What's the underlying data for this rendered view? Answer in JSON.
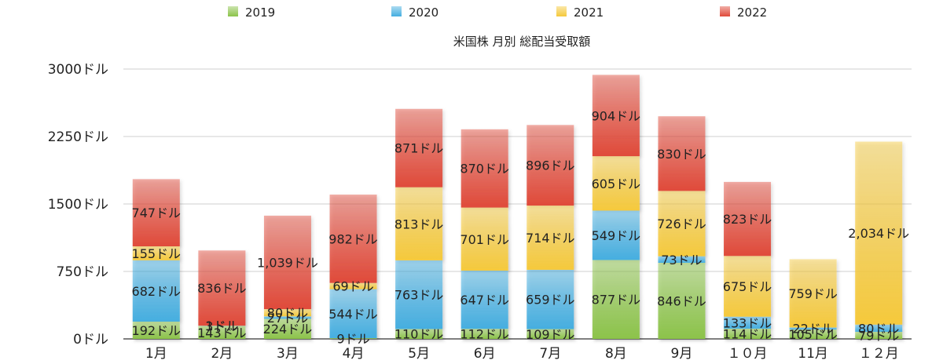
{
  "chart_data": {
    "type": "bar",
    "stacked": true,
    "title": "米国株 月別 総配当受取額",
    "xlabel": "",
    "ylabel": "",
    "ylim": [
      0,
      3000
    ],
    "yticks": [
      0,
      750,
      1500,
      2250,
      3000
    ],
    "ytick_labels": [
      "0ドル",
      "750ドル",
      "1500ドル",
      "2250ドル",
      "3000ドル"
    ],
    "grid": true,
    "legend_position": "top",
    "categories": [
      "1月",
      "2月",
      "3月",
      "4月",
      "5月",
      "6月",
      "7月",
      "8月",
      "9月",
      "１０月",
      "11月",
      "１２月"
    ],
    "series": [
      {
        "name": "2019",
        "color": "#8cc34a",
        "values": [
          192,
          143,
          224,
          9,
          110,
          112,
          109,
          877,
          846,
          114,
          105,
          79
        ],
        "labels": [
          "192ドル",
          "143ドル",
          "224ドル",
          "9ドル",
          "110ドル",
          "112ドル",
          "109ドル",
          "877ドル",
          "846ドル",
          "114ドル",
          "105ドル",
          "79ドル"
        ]
      },
      {
        "name": "2020",
        "color": "#45aee0",
        "values": [
          682,
          3,
          27,
          544,
          763,
          647,
          659,
          549,
          73,
          133,
          22,
          80
        ],
        "labels": [
          "682ドル",
          "3ドル",
          "27ドル",
          "544ドル",
          "763ドル",
          "647ドル",
          "659ドル",
          "549ドル",
          "73ドル",
          "133ドル",
          "22ドル",
          "80ドル"
        ]
      },
      {
        "name": "2021",
        "color": "#f5c93c",
        "values": [
          155,
          1,
          80,
          69,
          813,
          701,
          714,
          605,
          726,
          675,
          759,
          2034
        ],
        "labels": [
          "155ドル",
          "1ドル",
          "80ドル",
          "69ドル",
          "813ドル",
          "701ドル",
          "714ドル",
          "605ドル",
          "726ドル",
          "675ドル",
          "759ドル",
          "2,034ドル"
        ]
      },
      {
        "name": "2022",
        "color": "#e04a3a",
        "values": [
          747,
          836,
          1039,
          982,
          871,
          870,
          896,
          904,
          830,
          823,
          0,
          0
        ],
        "labels": [
          "747ドル",
          "836ドル",
          "1,039ドル",
          "982ドル",
          "871ドル",
          "870ドル",
          "896ドル",
          "904ドル",
          "830ドル",
          "823ドル",
          "",
          ""
        ]
      }
    ]
  }
}
